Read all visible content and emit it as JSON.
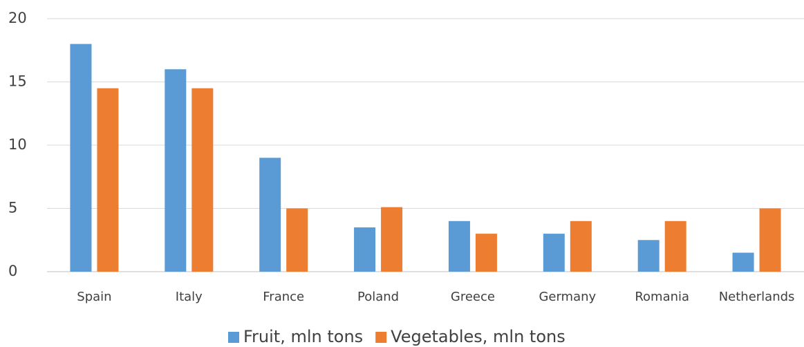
{
  "chart_data": {
    "type": "bar",
    "categories": [
      "Spain",
      "Italy",
      "France",
      "Poland",
      "Greece",
      "Germany",
      "Romania",
      "Netherlands"
    ],
    "series": [
      {
        "name": "Fruit, mln tons",
        "color": "#5b9bd5",
        "values": [
          18,
          16,
          9,
          3.5,
          4,
          3,
          2.5,
          1.5
        ]
      },
      {
        "name": "Vegetables, mln tons",
        "color": "#ed7d31",
        "values": [
          14.5,
          14.5,
          5,
          5.1,
          3,
          4,
          4,
          5
        ]
      }
    ],
    "ylim": [
      0,
      20
    ],
    "yticks": [
      0,
      5,
      10,
      15,
      20
    ],
    "grid": true,
    "legend": "bottom"
  }
}
